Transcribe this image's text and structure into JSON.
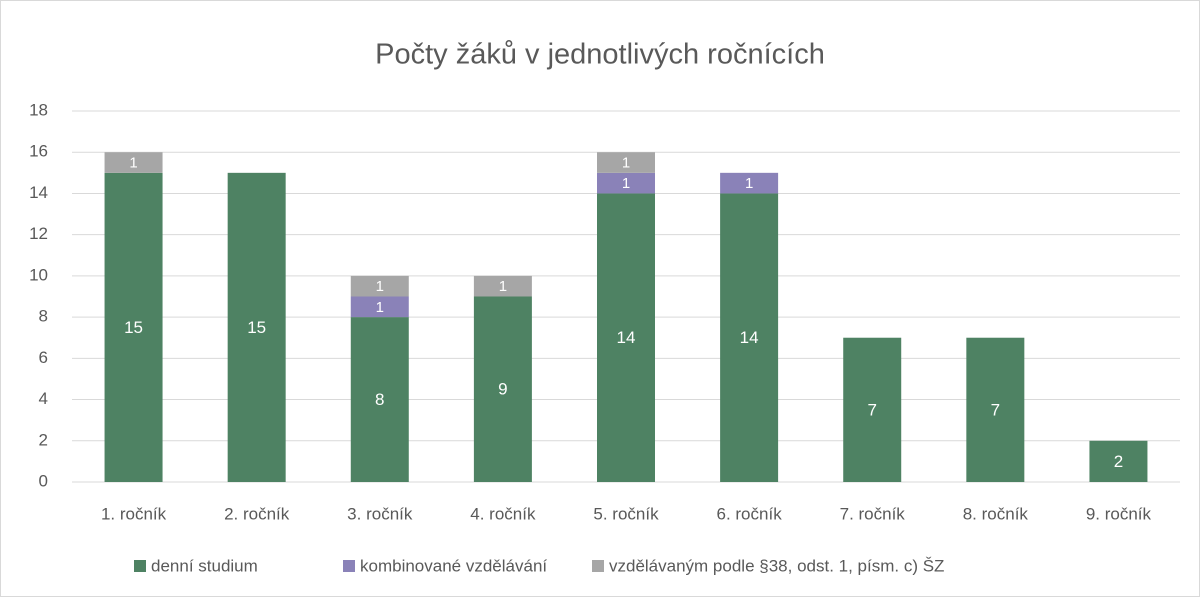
{
  "chart_data": {
    "type": "stacked_bar",
    "title": "Počty žáků v jednotlivých ročnících",
    "categories": [
      "1. ročník",
      "2. ročník",
      "3. ročník",
      "4. ročník",
      "5. ročník",
      "6. ročník",
      "7. ročník",
      "8. ročník",
      "9. ročník"
    ],
    "series": [
      {
        "name": "denní studium",
        "color": "#4e8263",
        "values": [
          15,
          15,
          8,
          9,
          14,
          14,
          7,
          7,
          2
        ]
      },
      {
        "name": "kombinované vzdělávání",
        "color": "#8a82b8",
        "values": [
          null,
          null,
          1,
          null,
          1,
          1,
          null,
          null,
          null
        ]
      },
      {
        "name": "vzdělávaným podle §38, odst. 1, písm. c) ŠZ",
        "color": "#a6a6a6",
        "values": [
          1,
          null,
          1,
          1,
          1,
          null,
          null,
          null,
          null
        ]
      }
    ],
    "ylim": [
      0,
      18
    ],
    "yticks": [
      0,
      2,
      4,
      6,
      8,
      10,
      12,
      14,
      16,
      18
    ],
    "grid": true,
    "legend": "bottom"
  }
}
